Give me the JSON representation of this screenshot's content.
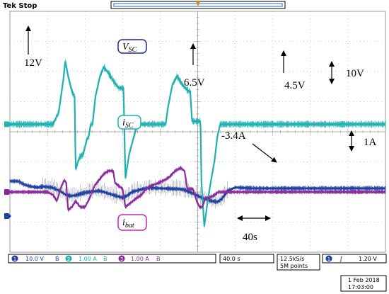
{
  "header": {
    "status": "Tek Stop",
    "trigger_marker_color": "#f08000"
  },
  "colors": {
    "ch1": "#1f3f9f",
    "ch2": "#1fb0b0",
    "ch3": "#8a2a9a",
    "grid": "#9a9a9a",
    "ch1_label_border": "#1a2a80",
    "ch2_label_border": "#1fb0b0",
    "ch3_label_border": "#c02ab0"
  },
  "chart_data": {
    "type": "line",
    "time_per_division_s": 40,
    "divisions_x": 10,
    "divisions_y": 8,
    "channels": [
      {
        "id": 1,
        "scale_v_per_div": 10.0,
        "ground_div_from_top": 6.8,
        "points": [
          [
            0,
            11.6
          ],
          [
            8,
            11.6
          ],
          [
            10,
            11.4
          ],
          [
            15,
            10.5
          ],
          [
            20,
            10.0
          ],
          [
            25,
            9.7
          ],
          [
            30,
            9.5
          ],
          [
            35,
            9.8
          ],
          [
            45,
            9.5
          ],
          [
            50,
            8.8
          ],
          [
            55,
            8.0
          ],
          [
            60,
            7.0
          ],
          [
            65,
            6.7
          ],
          [
            70,
            6.9
          ],
          [
            80,
            7.8
          ],
          [
            95,
            8.4
          ],
          [
            100,
            8.0
          ],
          [
            110,
            7.0
          ],
          [
            120,
            6.1
          ],
          [
            125,
            6.8
          ],
          [
            130,
            8.0
          ],
          [
            145,
            9.3
          ],
          [
            150,
            9.4
          ],
          [
            160,
            9.2
          ],
          [
            180,
            9.0
          ],
          [
            185,
            8.8
          ],
          [
            190,
            8.2
          ],
          [
            195,
            7.5
          ],
          [
            205,
            6.0
          ],
          [
            215,
            5.0
          ],
          [
            221,
            4.7
          ],
          [
            226,
            5.8
          ],
          [
            232,
            8.4
          ],
          [
            240,
            9.5
          ],
          [
            260,
            9.2
          ],
          [
            280,
            9.2
          ],
          [
            300,
            9.2
          ],
          [
            320,
            9.2
          ],
          [
            345,
            9.2
          ],
          [
            390,
            9.2
          ],
          [
            400,
            9.2
          ]
        ]
      },
      {
        "id": 2,
        "scale_a_per_div": 1.0,
        "ground_div_from_top": 3.75,
        "points": [
          [
            0,
            0
          ],
          [
            46,
            0
          ],
          [
            52,
            0.4
          ],
          [
            57,
            1.5
          ],
          [
            59,
            2.1
          ],
          [
            62,
            1.6
          ],
          [
            66,
            1.1
          ],
          [
            69,
            0.9
          ],
          [
            70,
            -1.5
          ],
          [
            74,
            -1.1
          ],
          [
            78,
            -1.0
          ],
          [
            82,
            -0.5
          ],
          [
            84,
            -0.4
          ],
          [
            86,
            0
          ],
          [
            88,
            0
          ],
          [
            91,
            0.9
          ],
          [
            96,
            1.6
          ],
          [
            100,
            1.9
          ],
          [
            105,
            1.7
          ],
          [
            111,
            1.4
          ],
          [
            116,
            1.2
          ],
          [
            121,
            1.2
          ],
          [
            123,
            -1.8
          ],
          [
            127,
            -1.0
          ],
          [
            133,
            -0.3
          ],
          [
            136,
            0
          ],
          [
            138,
            0
          ],
          [
            140,
            0
          ],
          [
            146,
            0
          ],
          [
            156,
            0
          ],
          [
            166,
            0
          ],
          [
            168,
            0.5
          ],
          [
            173,
            1.3
          ],
          [
            178,
            1.6
          ],
          [
            184,
            1.3
          ],
          [
            190,
            1.1
          ],
          [
            192,
            1.1
          ],
          [
            194,
            0.1
          ],
          [
            200,
            0.1
          ],
          [
            203,
            0.1
          ],
          [
            204,
            -1.9
          ],
          [
            207,
            -3.4
          ],
          [
            210,
            -2.7
          ],
          [
            214,
            -1.9
          ],
          [
            218,
            -1.2
          ],
          [
            221,
            -0.4
          ],
          [
            224,
            0
          ],
          [
            300,
            0
          ],
          [
            400,
            0
          ]
        ]
      },
      {
        "id": 3,
        "scale_a_per_div": 1.0,
        "ground_div_from_top": 6.0,
        "points": [
          [
            0,
            0
          ],
          [
            40,
            0
          ],
          [
            46,
            -0.1
          ],
          [
            50,
            -0.3
          ],
          [
            55,
            0.2
          ],
          [
            58,
            0.4
          ],
          [
            60,
            0.3
          ],
          [
            62,
            -0.6
          ],
          [
            66,
            -0.5
          ],
          [
            70,
            -0.3
          ],
          [
            75,
            -0.5
          ],
          [
            80,
            -0.5
          ],
          [
            85,
            -0.2
          ],
          [
            90,
            0.2
          ],
          [
            95,
            0.4
          ],
          [
            100,
            0.6
          ],
          [
            105,
            0.7
          ],
          [
            110,
            0.7
          ],
          [
            112,
            0.3
          ],
          [
            116,
            0.2
          ],
          [
            120,
            0.1
          ],
          [
            123,
            -0.5
          ],
          [
            127,
            -0.4
          ],
          [
            135,
            -0.2
          ],
          [
            140,
            -0.1
          ],
          [
            145,
            0.1
          ],
          [
            150,
            0.2
          ],
          [
            158,
            0.3
          ],
          [
            165,
            0.4
          ],
          [
            170,
            0.5
          ],
          [
            176,
            0.7
          ],
          [
            182,
            0.8
          ],
          [
            186,
            0.7
          ],
          [
            189,
            0.1
          ],
          [
            195,
            0.1
          ],
          [
            199,
            -0.3
          ],
          [
            202,
            -0.5
          ],
          [
            205,
            -0.5
          ],
          [
            208,
            -0.2
          ],
          [
            212,
            -0.2
          ],
          [
            218,
            -0.1
          ],
          [
            222,
            0
          ],
          [
            400,
            0
          ]
        ]
      }
    ]
  },
  "annotations": {
    "vsc_label_main": "V",
    "vsc_label_sub": "SC",
    "isc_label_main": "i",
    "isc_label_sub": "SC",
    "ibat_label_main": "i",
    "ibat_label_sub": "bat",
    "v12": "12V",
    "v65": "6.5V",
    "v45": "4.5V",
    "a34": "-3.4A",
    "scale10v": "10V",
    "scale1a": "1A",
    "t40s": "40s"
  },
  "footer": {
    "ch1_num": "1",
    "ch1_scale": "10.0 V",
    "ch1_bw": "B",
    "ch2_num": "2",
    "ch2_scale": "1.00 A",
    "ch2_bw": "B",
    "ch3_num": "3",
    "ch3_scale": "1.00 A",
    "ch3_bw": "B",
    "timebase": "40.0 s",
    "sample_rate": "12.5kS/s",
    "record_length": "5M points",
    "trig_channel": "1",
    "trig_slope": "∫",
    "trig_level": "1.20 V",
    "date": "1 Feb 2018",
    "time": "17:03:00"
  }
}
